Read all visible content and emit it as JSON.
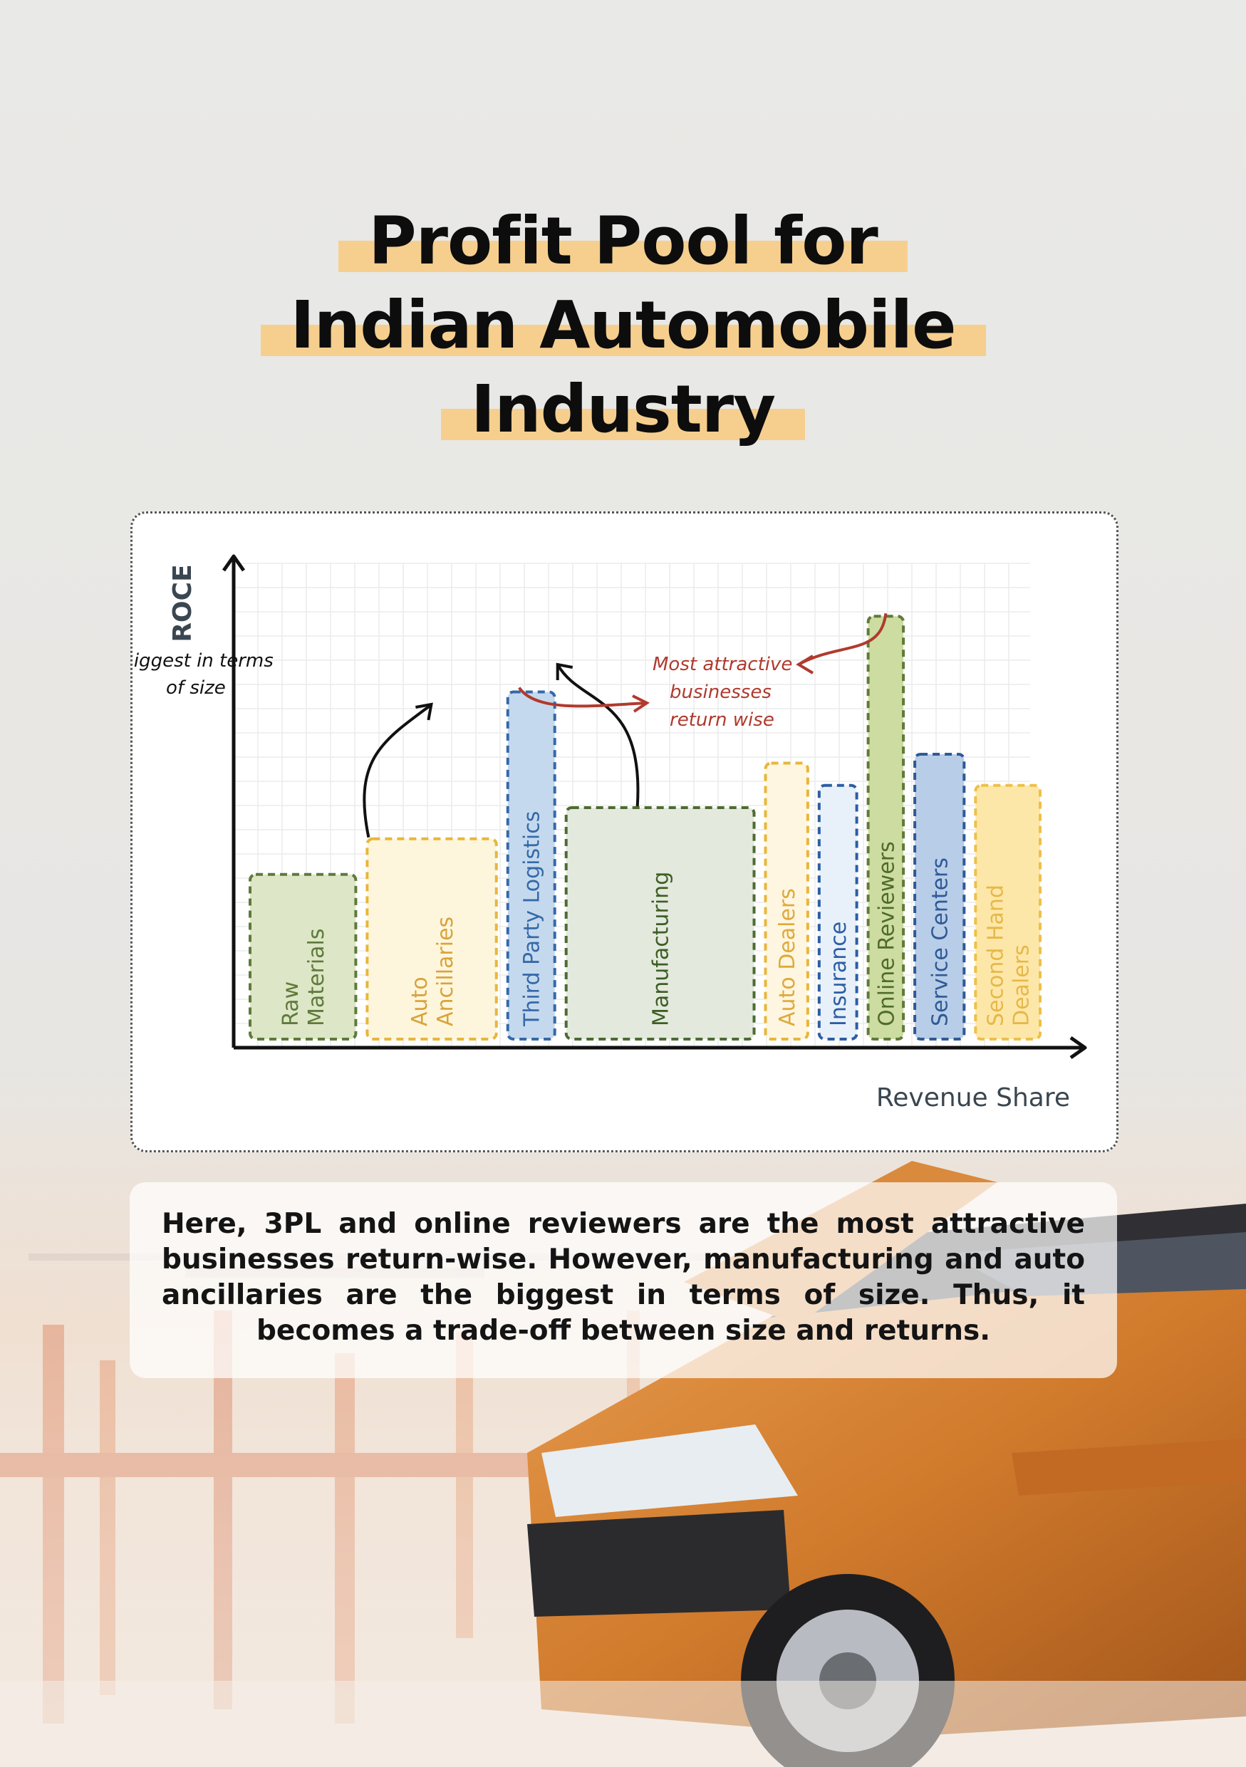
{
  "title_lines": [
    "Profit Pool for",
    "Indian Automobile",
    "Industry"
  ],
  "chart_data": {
    "type": "bar",
    "xlabel": "Revenue Share",
    "ylabel": "ROCE",
    "grid": true,
    "bars": [
      {
        "label": "Raw Materials",
        "lines": [
          "Raw",
          "Materials"
        ],
        "width": 0.9,
        "roce": 0.37,
        "fill": "#dde6c7",
        "stroke": "#5f7a3a",
        "text": "#5f7a3a"
      },
      {
        "label": "Auto Ancillaries",
        "lines": [
          "Auto",
          "Ancillaries"
        ],
        "width": 1.1,
        "roce": 0.45,
        "fill": "#fdf6dc",
        "stroke": "#e8b63a",
        "text": "#d9a33c"
      },
      {
        "label": "Third Party Logistics",
        "lines": [
          "Third Party Logistics"
        ],
        "width": 0.4,
        "roce": 0.78,
        "fill": "#c5d9ee",
        "stroke": "#3569a8",
        "text": "#3569a8"
      },
      {
        "label": "Manufacturing",
        "lines": [
          "Manufacturing"
        ],
        "width": 1.6,
        "roce": 0.52,
        "fill": "#e3e9dd",
        "stroke": "#4d6b33",
        "text": "#3d5e24"
      },
      {
        "label": "Auto Dealers",
        "lines": [
          "Auto Dealers"
        ],
        "width": 0.36,
        "roce": 0.62,
        "fill": "#fef6e0",
        "stroke": "#e8b63a",
        "text": "#e0a93c"
      },
      {
        "label": "Insurance",
        "lines": [
          "Insurance"
        ],
        "width": 0.32,
        "roce": 0.57,
        "fill": "#e8f0f9",
        "stroke": "#2c5ea3",
        "text": "#2c5ea3"
      },
      {
        "label": "Online Reviewers",
        "lines": [
          "Online Reviewers"
        ],
        "width": 0.3,
        "roce": 0.95,
        "fill": "#cddca0",
        "stroke": "#5f7a3a",
        "text": "#4f6b2a"
      },
      {
        "label": "Service Centers",
        "lines": [
          "Service Centers"
        ],
        "width": 0.42,
        "roce": 0.64,
        "fill": "#b8cde8",
        "stroke": "#2f5a95",
        "text": "#2f5a95"
      },
      {
        "label": "Second Hand Dealers",
        "lines": [
          "Second Hand",
          "Dealers"
        ],
        "width": 0.55,
        "roce": 0.57,
        "fill": "#fde7a8",
        "stroke": "#edc04a",
        "text": "#e6b84a"
      }
    ],
    "annotations": [
      {
        "lines": [
          "Biggest in terms",
          "of size"
        ],
        "color": "#111111"
      },
      {
        "lines": [
          "Most attractive",
          "businesses",
          "return wise"
        ],
        "color": "#b03a2e"
      }
    ]
  },
  "caption": "Here, 3PL and online reviewers are the most attractive businesses return-wise. However, manufacturing and auto ancillaries are the biggest in terms of size. Thus, it becomes a trade-off between size and returns.",
  "colors": {
    "highlight": "#f6cf8e",
    "axis": "#111111",
    "label": "#3a4650"
  }
}
